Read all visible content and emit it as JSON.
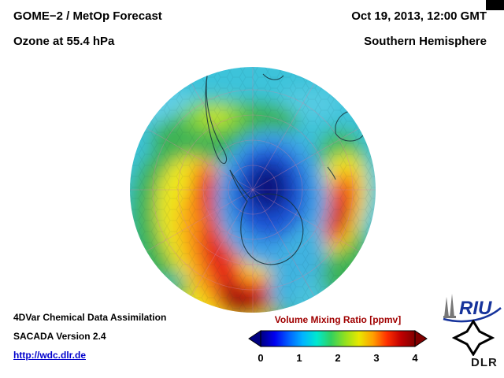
{
  "header": {
    "title_line1": "GOME−2 / MetOp Forecast",
    "title_line2": "Ozone at 55.4 hPa",
    "date_line": "Oct 19, 2013, 12:00 GMT",
    "region_line": "Southern Hemisphere"
  },
  "footer": {
    "line1": "4DVar Chemical Data Assimilation",
    "line2": "SACADA Version 2.4",
    "url": "http://wdc.dlr.de"
  },
  "colorbar": {
    "title": "Volume Mixing Ratio [ppmv]",
    "title_color": "#a00000",
    "ticks": [
      "0",
      "1",
      "2",
      "3",
      "4"
    ],
    "gradient": [
      "#000080",
      "#0000f0",
      "#0060ff",
      "#00b4ff",
      "#00e8d0",
      "#30d060",
      "#90e020",
      "#e8e800",
      "#ffa000",
      "#ff3000",
      "#c00000",
      "#800000"
    ]
  },
  "logos": {
    "riu": "RIU",
    "dlr": "DLR"
  },
  "map": {
    "type": "filled-contour hemisphere heatmap",
    "projection": "Southern Hemisphere polar view",
    "quantity": "Ozone volume mixing ratio",
    "units": "ppmv",
    "scale_range": [
      0,
      4
    ],
    "features": [
      {
        "name": "polar-ozone-minimum",
        "approx_value_ppmv": 0.5,
        "color": "deep blue",
        "location": "near pole, offset off-center"
      },
      {
        "name": "ozone-maximum-left-lobe",
        "approx_value_ppmv": 3.8,
        "color": "red to dark red",
        "location": "crescent south of South America"
      },
      {
        "name": "ozone-maximum-right-lobe",
        "approx_value_ppmv": 3.5,
        "color": "red",
        "location": "arc on right mid-latitudes"
      },
      {
        "name": "collar-band",
        "approx_value_ppmv": 2.0,
        "color": "green",
        "location": "subtropical ring"
      },
      {
        "name": "outer-rim-background",
        "approx_value_ppmv": 1.5,
        "color": "cyan",
        "location": "tropical rim of disc"
      }
    ]
  }
}
